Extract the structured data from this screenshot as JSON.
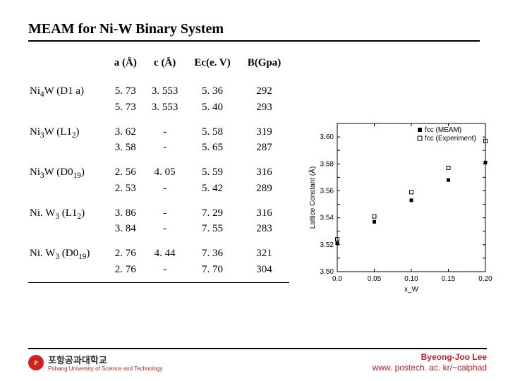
{
  "title": "MEAM for Ni-W Binary System",
  "table": {
    "headers": [
      "a (Å)",
      "c (Å)",
      "Ec(e. V)",
      "B(Gpa)"
    ],
    "rows": [
      {
        "label_html": "Ni<sub>4</sub>W (D1 a)",
        "a": [
          "5. 73",
          "5. 73"
        ],
        "c": [
          "3. 553",
          "3. 553"
        ],
        "ec": [
          "5. 36",
          "5. 40"
        ],
        "b": [
          "292",
          "293"
        ]
      },
      {
        "label_html": "Ni<sub>3</sub>W (L1<sub>2</sub>)",
        "a": [
          "3. 62",
          "3. 58"
        ],
        "c": [
          "-",
          "-"
        ],
        "ec": [
          "5. 58",
          "5. 65"
        ],
        "b": [
          "319",
          "287"
        ]
      },
      {
        "label_html": "Ni<sub>3</sub>W (D0<sub>19</sub>)",
        "a": [
          "2. 56",
          "2. 53"
        ],
        "c": [
          "4. 05",
          "-"
        ],
        "ec": [
          "5. 59",
          "5. 42"
        ],
        "b": [
          "316",
          "289"
        ]
      },
      {
        "label_html": "Ni. W<sub>3</sub> (L1<sub>2</sub>)",
        "a": [
          "3. 86",
          "3. 84"
        ],
        "c": [
          "-",
          "-"
        ],
        "ec": [
          "7. 29",
          "7. 55"
        ],
        "b": [
          "316",
          "283"
        ]
      },
      {
        "label_html": "Ni. W<sub>3</sub> (D0<sub>19</sub>)",
        "a": [
          "2. 76",
          "2. 76"
        ],
        "c": [
          "4. 44",
          "-"
        ],
        "ec": [
          "7. 36",
          "7. 70"
        ],
        "b": [
          "321",
          "304"
        ]
      }
    ]
  },
  "chart": {
    "type": "scatter",
    "xlabel": "x_W",
    "ylabel": "Lattice Constant (Å)",
    "xlim": [
      0.0,
      0.2
    ],
    "ylim": [
      3.5,
      3.61
    ],
    "xticks": [
      0.0,
      0.05,
      0.1,
      0.15,
      0.2
    ],
    "yticks": [
      3.5,
      3.51,
      3.52,
      3.53,
      3.54,
      3.55,
      3.56,
      3.57,
      3.58,
      3.59,
      3.6,
      3.61
    ],
    "background_color": "#ffffff",
    "axis_color": "#000000",
    "legend": {
      "position": "top-right",
      "items": [
        {
          "marker": "square-filled",
          "color": "#000000",
          "label": "fcc (MEAM)"
        },
        {
          "marker": "square-open",
          "color": "#000000",
          "label": "fcc (Experiment)"
        }
      ]
    },
    "series": [
      {
        "name": "fcc-meam",
        "marker": "square-filled",
        "color": "#000000",
        "size": 5,
        "points": [
          [
            0.0,
            3.521
          ],
          [
            0.05,
            3.537
          ],
          [
            0.1,
            3.553
          ],
          [
            0.15,
            3.568
          ],
          [
            0.2,
            3.581
          ]
        ]
      },
      {
        "name": "fcc-exp",
        "marker": "square-open",
        "color": "#000000",
        "size": 5,
        "points": [
          [
            0.0,
            3.524
          ],
          [
            0.05,
            3.541
          ],
          [
            0.1,
            3.559
          ],
          [
            0.15,
            3.577
          ],
          [
            0.2,
            3.597
          ]
        ]
      }
    ]
  },
  "footer": {
    "logo_kor": "포항공과대학교",
    "logo_eng": "Pohang University of Science and Technology",
    "logo_color": "#b22222",
    "name": "Byeong-Joo Lee",
    "url": "www. postech. ac. kr/~calphad"
  }
}
